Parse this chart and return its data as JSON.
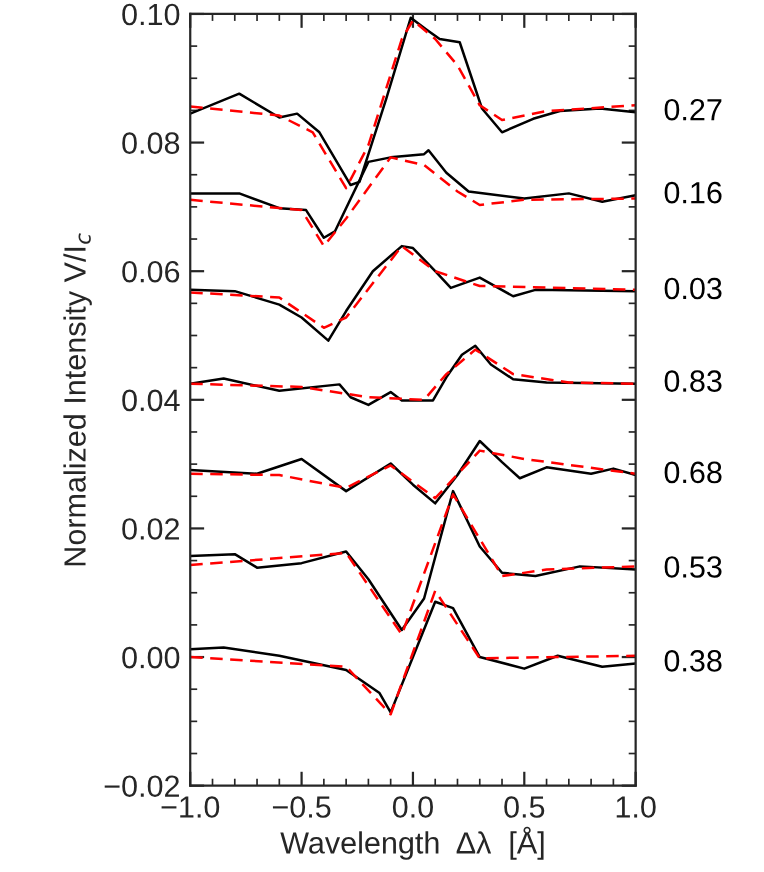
{
  "chart_data": {
    "type": "line",
    "xlabel": "Wavelength  Δλ  [Å]",
    "ylabel": "Normalized Intensity V/I$_{c}$",
    "xlim": [
      -1.0,
      1.0
    ],
    "ylim": [
      -0.02,
      0.1
    ],
    "xticks": [
      {
        "value": -1.0,
        "label": "−1.0"
      },
      {
        "value": -0.5,
        "label": "−0.5"
      },
      {
        "value": 0.0,
        "label": "0.0"
      },
      {
        "value": 0.5,
        "label": "0.5"
      },
      {
        "value": 1.0,
        "label": "1.0"
      }
    ],
    "yticks": [
      {
        "value": -0.02,
        "label": "−0.02"
      },
      {
        "value": 0.0,
        "label": "0.00"
      },
      {
        "value": 0.02,
        "label": "0.02"
      },
      {
        "value": 0.04,
        "label": "0.04"
      },
      {
        "value": 0.06,
        "label": "0.06"
      },
      {
        "value": 0.08,
        "label": "0.08"
      },
      {
        "value": 0.1,
        "label": "0.10"
      }
    ],
    "grid": false,
    "legend": false,
    "marker": "none",
    "series": [
      {
        "name": "0.27",
        "color": "#000000",
        "line_style": "solid",
        "x": [
          -1,
          -0.78,
          -0.6,
          -0.52,
          -0.42,
          -0.28,
          -0.24,
          -0.12,
          -0.01,
          0.06,
          0.12,
          0.21,
          0.31,
          0.4,
          0.54,
          0.66,
          0.84,
          1.0
        ],
        "values": [
          0.0845,
          0.0876,
          0.0839,
          0.0845,
          0.0816,
          0.0734,
          0.0739,
          0.0868,
          0.0994,
          0.0976,
          0.0961,
          0.0956,
          0.0853,
          0.0816,
          0.0837,
          0.0849,
          0.0853,
          0.0847
        ]
      },
      {
        "color": "#ff0000",
        "line_style": "dashed",
        "x": [
          -1,
          -0.6,
          -0.45,
          -0.3,
          -0.2,
          -0.05,
          0.0,
          0.1,
          0.2,
          0.3,
          0.4,
          0.6,
          1.0
        ],
        "values": [
          0.0856,
          0.0842,
          0.0816,
          0.0729,
          0.0796,
          0.0961,
          0.099,
          0.0961,
          0.092,
          0.0858,
          0.0835,
          0.0849,
          0.0858
        ]
      },
      {
        "name": "0.16",
        "color": "#000000",
        "line_style": "solid",
        "x": [
          -1,
          -0.78,
          -0.6,
          -0.48,
          -0.4,
          -0.35,
          -0.2,
          -0.1,
          0.05,
          0.07,
          0.15,
          0.25,
          0.5,
          0.7,
          0.85,
          1.0
        ],
        "values": [
          0.0721,
          0.0721,
          0.0698,
          0.0695,
          0.0652,
          0.0662,
          0.077,
          0.0777,
          0.0782,
          0.0788,
          0.0753,
          0.0724,
          0.0713,
          0.0721,
          0.0708,
          0.0718
        ]
      },
      {
        "color": "#ff0000",
        "line_style": "dashed",
        "x": [
          -1,
          -0.5,
          -0.4,
          -0.3,
          -0.1,
          0.05,
          0.2,
          0.3,
          0.5,
          1.0
        ],
        "values": [
          0.0711,
          0.0695,
          0.0639,
          0.0682,
          0.0777,
          0.0765,
          0.0724,
          0.0703,
          0.0711,
          0.0713
        ]
      },
      {
        "name": "0.03",
        "color": "#000000",
        "line_style": "solid",
        "x": [
          -1,
          -0.8,
          -0.6,
          -0.5,
          -0.38,
          -0.3,
          -0.18,
          -0.05,
          0.0,
          0.1,
          0.17,
          0.3,
          0.45,
          0.55,
          1.0
        ],
        "values": [
          0.0571,
          0.0569,
          0.0548,
          0.0528,
          0.0492,
          0.0538,
          0.06,
          0.0639,
          0.0636,
          0.06,
          0.0574,
          0.059,
          0.0561,
          0.0571,
          0.0569
        ]
      },
      {
        "color": "#ff0000",
        "line_style": "dashed",
        "x": [
          -1,
          -0.6,
          -0.4,
          -0.3,
          -0.05,
          0.1,
          0.3,
          1.0
        ],
        "values": [
          0.0567,
          0.0559,
          0.0512,
          0.0528,
          0.0639,
          0.06,
          0.0577,
          0.0571
        ]
      },
      {
        "name": "0.83",
        "color": "#000000",
        "line_style": "solid",
        "x": [
          -1,
          -0.85,
          -0.6,
          -0.33,
          -0.28,
          -0.2,
          -0.1,
          -0.05,
          0.09,
          0.15,
          0.22,
          0.28,
          0.35,
          0.45,
          0.6,
          1.0
        ],
        "values": [
          0.0425,
          0.0433,
          0.0414,
          0.0424,
          0.0404,
          0.0392,
          0.0412,
          0.0399,
          0.0399,
          0.0435,
          0.047,
          0.0484,
          0.0455,
          0.0432,
          0.0427,
          0.0425
        ]
      },
      {
        "color": "#ff0000",
        "line_style": "dashed",
        "x": [
          -1,
          -0.5,
          -0.2,
          0.05,
          0.15,
          0.28,
          0.45,
          0.7,
          1.0
        ],
        "values": [
          0.0425,
          0.042,
          0.0404,
          0.04,
          0.044,
          0.0478,
          0.044,
          0.0427,
          0.0425
        ]
      },
      {
        "name": "0.68",
        "color": "#000000",
        "line_style": "solid",
        "x": [
          -1,
          -0.7,
          -0.5,
          -0.3,
          -0.1,
          0.0,
          0.1,
          0.2,
          0.3,
          0.4,
          0.48,
          0.6,
          0.8,
          0.9,
          1.0
        ],
        "values": [
          0.0291,
          0.0285,
          0.0308,
          0.0258,
          0.0301,
          0.0268,
          0.0239,
          0.0283,
          0.0336,
          0.0303,
          0.0278,
          0.0295,
          0.0285,
          0.0293,
          0.0283
        ]
      },
      {
        "color": "#ff0000",
        "line_style": "dashed",
        "x": [
          -1,
          -0.6,
          -0.3,
          -0.1,
          0.1,
          0.3,
          0.5,
          1.0
        ],
        "values": [
          0.0285,
          0.0283,
          0.0263,
          0.0298,
          0.0247,
          0.0321,
          0.0308,
          0.0285
        ]
      },
      {
        "name": "0.53",
        "color": "#000000",
        "line_style": "solid",
        "x": [
          -1,
          -0.8,
          -0.7,
          -0.5,
          -0.3,
          -0.2,
          -0.05,
          0.05,
          0.18,
          0.3,
          0.4,
          0.55,
          0.75,
          1.0
        ],
        "values": [
          0.0157,
          0.016,
          0.0139,
          0.0146,
          0.0164,
          0.0121,
          0.0042,
          0.0091,
          0.0258,
          0.0172,
          0.0131,
          0.0126,
          0.0141,
          0.0136
        ]
      },
      {
        "color": "#ff0000",
        "line_style": "dashed",
        "x": [
          -1,
          -0.3,
          -0.05,
          0.18,
          0.4,
          0.6,
          1.0
        ],
        "values": [
          0.0143,
          0.0162,
          0.0035,
          0.0253,
          0.0126,
          0.0136,
          0.0141
        ]
      },
      {
        "name": "0.38",
        "color": "#000000",
        "line_style": "solid",
        "x": [
          -1,
          -0.85,
          -0.6,
          -0.3,
          -0.15,
          -0.1,
          0.0,
          0.1,
          0.18,
          0.3,
          0.5,
          0.65,
          0.85,
          1.0
        ],
        "values": [
          0.0012,
          0.0015,
          0.0002,
          -0.002,
          -0.0056,
          -0.0086,
          0.0,
          0.0086,
          0.0076,
          0.0,
          -0.0018,
          0.0002,
          -0.0015,
          -0.001
        ]
      },
      {
        "color": "#ff0000",
        "line_style": "dashed",
        "x": [
          -1,
          -0.3,
          -0.1,
          0.1,
          0.3,
          1.0
        ],
        "values": [
          0.0,
          -0.0015,
          -0.0089,
          0.0103,
          -0.0002,
          0.0002
        ]
      }
    ]
  }
}
